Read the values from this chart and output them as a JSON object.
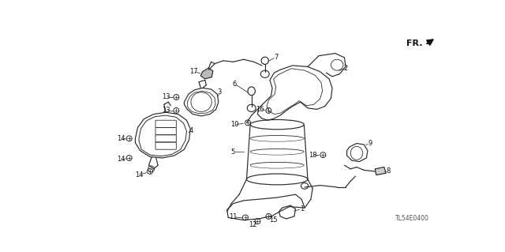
{
  "bg_color": "#ffffff",
  "diagram_code": "TL54E0400",
  "fr_label": "FR.",
  "line_color": "#2a2a2a",
  "label_color": "#111111",
  "label_fontsize": 6.0,
  "lw": 0.85
}
